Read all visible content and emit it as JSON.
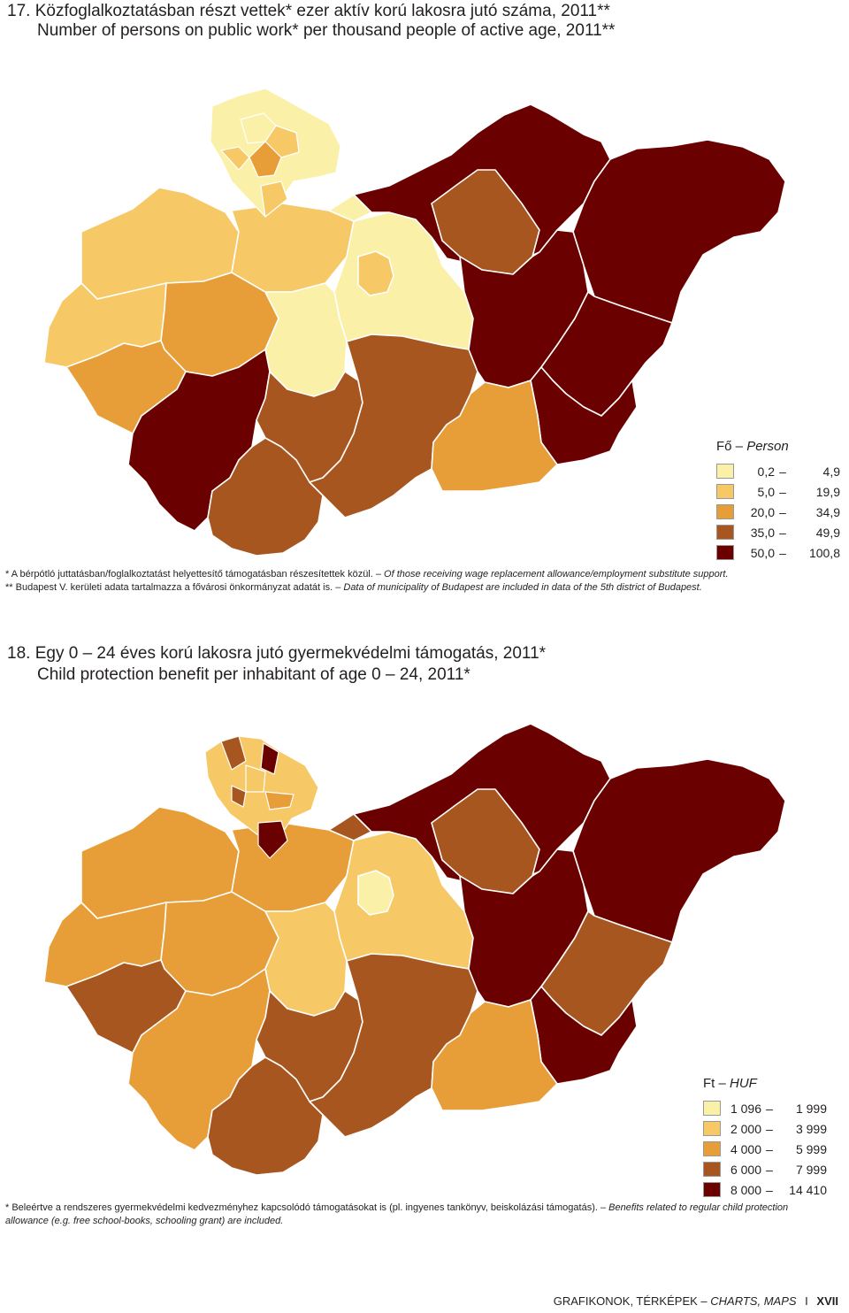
{
  "colors": {
    "c1": "#faf0a8",
    "c2": "#f6c866",
    "c3": "#e89e38",
    "c4": "#a85620",
    "c5": "#6a0000"
  },
  "map1": {
    "number": "17.",
    "title_hu": "Közfoglalkoztatásban részt vettek* ezer aktív korú lakosra jutó száma, 2011**",
    "title_en": "Number of persons on public work* per thousand people of active age, 2011**",
    "legend_unit_hu": "Fő –",
    "legend_unit_en": "Person",
    "legend": [
      {
        "lo": "0,2",
        "hi": "4,9"
      },
      {
        "lo": "5,0",
        "hi": "19,9"
      },
      {
        "lo": "20,0",
        "hi": "34,9"
      },
      {
        "lo": "35,0",
        "hi": "49,9"
      },
      {
        "lo": "50,0",
        "hi": "100,8"
      }
    ],
    "note1_hu": "* A bérpótló juttatásban/foglalkoztatást helyettesítő támogatásban részesítettek közül. –",
    "note1_en": "Of those receiving wage replacement allowance/employment substitute support.",
    "note2_hu": "** Budapest V. kerületi adata tartalmazza a fővárosi önkormányzat adatát is. –",
    "note2_en": "Data of municipality of Budapest are included in data of the 5th district of Budapest.",
    "classes": {
      "gyor": 2,
      "komarom": 2,
      "pest": 1,
      "nograd": 1,
      "borsod": 5,
      "heves": 4,
      "szabolcs": 5,
      "vas": 2,
      "veszprem": 3,
      "fejer": 1,
      "zala": 3,
      "somogy": 5,
      "tolna": 4,
      "baranya": 4,
      "bacs": 4,
      "jasz": 5,
      "hajdu": 5,
      "bekes": 5,
      "csongrad": 3,
      "kecskemet": 2
    }
  },
  "map2": {
    "number": "18.",
    "title_hu": "Egy 0 – 24 éves korú lakosra jutó gyermekvédelmi támogatás, 2011*",
    "title_en": "Child protection benefit per inhabitant of age 0 – 24, 2011*",
    "legend_unit_hu": "Ft –",
    "legend_unit_en": "HUF",
    "legend": [
      {
        "lo": "1 096",
        "hi": "1 999"
      },
      {
        "lo": "2 000",
        "hi": "3 999"
      },
      {
        "lo": "4 000",
        "hi": "5 999"
      },
      {
        "lo": "6 000",
        "hi": "7 999"
      },
      {
        "lo": "8 000",
        "hi": "14 410"
      }
    ],
    "note_hu": "* Beleértve a rendszeres gyermekvédelmi kedvezményhez kapcsolódó támogatásokat is (pl. ingyenes tankönyv, beiskolázási támogatás). –",
    "note_en": "Benefits related to regular child protection allowance (e.g. free school-books, schooling grant) are included.",
    "classes": {
      "gyor": 3,
      "komarom": 3,
      "pest": 2,
      "nograd": 4,
      "borsod": 5,
      "heves": 4,
      "szabolcs": 5,
      "vas": 3,
      "veszprem": 3,
      "fejer": 2,
      "zala": 4,
      "somogy": 3,
      "tolna": 4,
      "baranya": 4,
      "bacs": 4,
      "jasz": 5,
      "hajdu": 4,
      "bekes": 5,
      "csongrad": 3,
      "kecskemet": 1
    }
  },
  "footer": {
    "hu": "GRAFIKONOK, TÉRKÉPEK –",
    "en": "CHARTS, MAPS",
    "sep": "I",
    "page": "XVII"
  }
}
